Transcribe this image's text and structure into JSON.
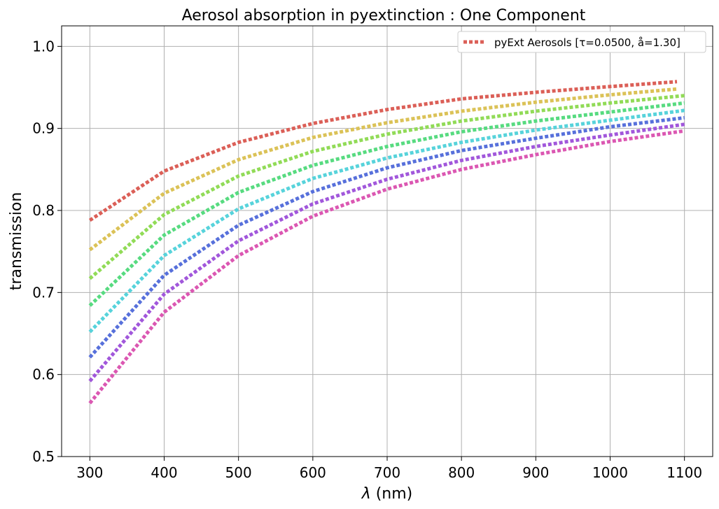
{
  "chart_data": {
    "type": "line",
    "title": "Aerosol absorption in pyextinction : One Component",
    "xlabel_symbol": "λ",
    "xlabel_unit": " (nm)",
    "ylabel": "transmission",
    "xlim": [
      262,
      1138
    ],
    "ylim": [
      0.5,
      1.025
    ],
    "xticks": [
      300,
      400,
      500,
      600,
      700,
      800,
      900,
      1000,
      1100
    ],
    "yticks": [
      0.5,
      0.6,
      0.7,
      0.8,
      0.9,
      1.0
    ],
    "ytick_labels": [
      "0.5",
      "0.6",
      "0.7",
      "0.8",
      "0.9",
      "1.0"
    ],
    "grid": true,
    "line_style": "dotted",
    "legend": {
      "placement": "top-right",
      "entries": [
        {
          "label": "pyExt Aerosols [τ=0.0500, å=1.30]",
          "color": "#db5f57"
        }
      ]
    },
    "series": [
      {
        "color": "#db5f57",
        "x": [
          300,
          400,
          500,
          600,
          700,
          800,
          900,
          1000,
          1090
        ],
        "values": [
          0.788,
          0.848,
          0.883,
          0.906,
          0.923,
          0.936,
          0.944,
          0.951,
          0.957
        ]
      },
      {
        "color": "#dbc257",
        "x": [
          300,
          400,
          500,
          600,
          700,
          800,
          900,
          1000,
          1090
        ],
        "values": [
          0.752,
          0.821,
          0.862,
          0.889,
          0.907,
          0.921,
          0.932,
          0.941,
          0.948
        ]
      },
      {
        "color": "#91db57",
        "x": [
          300,
          400,
          500,
          600,
          700,
          800,
          900,
          1000,
          1100
        ],
        "values": [
          0.717,
          0.795,
          0.842,
          0.872,
          0.893,
          0.909,
          0.921,
          0.931,
          0.94
        ]
      },
      {
        "color": "#57db80",
        "x": [
          300,
          400,
          500,
          600,
          700,
          800,
          900,
          1000,
          1100
        ],
        "values": [
          0.684,
          0.77,
          0.822,
          0.855,
          0.878,
          0.896,
          0.909,
          0.92,
          0.931
        ]
      },
      {
        "color": "#57d3db",
        "x": [
          300,
          400,
          500,
          600,
          700,
          800,
          900,
          1000,
          1100
        ],
        "values": [
          0.652,
          0.745,
          0.802,
          0.839,
          0.864,
          0.883,
          0.898,
          0.91,
          0.922
        ]
      },
      {
        "color": "#5770db",
        "x": [
          300,
          400,
          500,
          600,
          700,
          800,
          900,
          1000,
          1100
        ],
        "values": [
          0.621,
          0.721,
          0.782,
          0.823,
          0.852,
          0.873,
          0.888,
          0.902,
          0.913
        ]
      },
      {
        "color": "#a157db",
        "x": [
          300,
          400,
          500,
          600,
          700,
          800,
          900,
          1000,
          1100
        ],
        "values": [
          0.592,
          0.698,
          0.763,
          0.808,
          0.838,
          0.861,
          0.878,
          0.892,
          0.905
        ]
      },
      {
        "color": "#db57b2",
        "x": [
          300,
          400,
          500,
          600,
          700,
          800,
          900,
          1000,
          1100
        ],
        "values": [
          0.565,
          0.676,
          0.745,
          0.793,
          0.826,
          0.85,
          0.868,
          0.884,
          0.897
        ]
      }
    ]
  }
}
